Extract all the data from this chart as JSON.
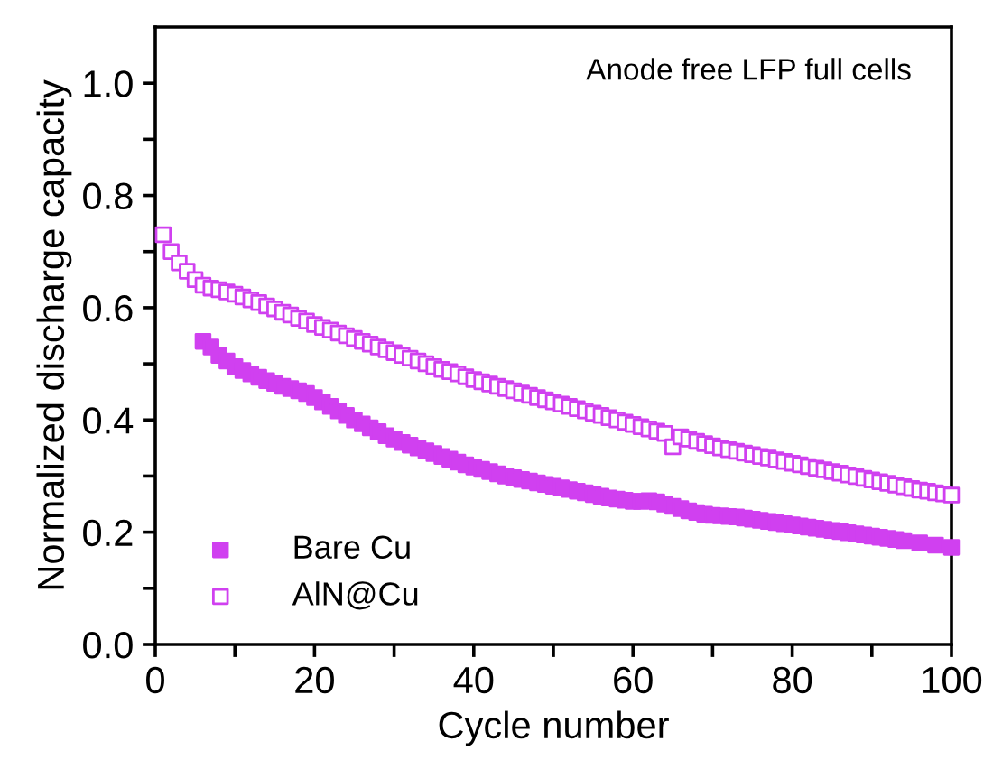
{
  "chart_data": {
    "type": "scatter",
    "xlabel": "Cycle number",
    "ylabel": "Normalized discharge capacity",
    "annotations": [
      "Anode free LFP full cells"
    ],
    "xlim": [
      0,
      100
    ],
    "xticks": [
      0,
      {
        "value": 10,
        "label": null
      },
      20,
      {
        "value": 30,
        "label": null
      },
      40,
      {
        "value": 50,
        "label": null
      },
      60,
      {
        "value": 70,
        "label": null
      },
      80,
      {
        "value": 90,
        "label": null
      },
      100
    ],
    "ylim": [
      0,
      1.1
    ],
    "yticks": [
      {
        "value": 0,
        "label": "0.0"
      },
      {
        "value": 0.1,
        "label": null
      },
      {
        "value": 0.2,
        "label": "0.2"
      },
      {
        "value": 0.3,
        "label": null
      },
      {
        "value": 0.4,
        "label": "0.4"
      },
      {
        "value": 0.5,
        "label": null
      },
      {
        "value": 0.6,
        "label": "0.6"
      },
      {
        "value": 0.7,
        "label": null
      },
      {
        "value": 0.8,
        "label": "0.8"
      },
      {
        "value": 0.9,
        "label": null
      },
      {
        "value": 1.0,
        "label": "1.0"
      }
    ],
    "grid": false,
    "legend": "bottom left",
    "marker": "square",
    "series": [
      {
        "name": "Bare Cu",
        "color": "#d040f0",
        "x": [
          6,
          7,
          8,
          9,
          10,
          11,
          12,
          13,
          14,
          15,
          16,
          17,
          18,
          19,
          20,
          21,
          22,
          23,
          24,
          25,
          26,
          27,
          28,
          29,
          30,
          31,
          32,
          33,
          34,
          35,
          36,
          37,
          38,
          39,
          40,
          41,
          42,
          43,
          44,
          45,
          46,
          47,
          48,
          49,
          50,
          51,
          52,
          53,
          54,
          55,
          56,
          57,
          58,
          59,
          60,
          61,
          62,
          63,
          64,
          65,
          66,
          67,
          68,
          69,
          70,
          71,
          72,
          73,
          74,
          75,
          76,
          77,
          78,
          79,
          80,
          81,
          82,
          83,
          84,
          85,
          86,
          87,
          88,
          89,
          90,
          91,
          92,
          93,
          94,
          96,
          98,
          100
        ],
        "values": [
          0.54,
          0.53,
          0.515,
          0.505,
          0.495,
          0.488,
          0.482,
          0.476,
          0.47,
          0.465,
          0.46,
          0.456,
          0.452,
          0.447,
          0.44,
          0.432,
          0.424,
          0.416,
          0.408,
          0.4,
          0.393,
          0.386,
          0.379,
          0.372,
          0.366,
          0.36,
          0.355,
          0.35,
          0.345,
          0.34,
          0.335,
          0.33,
          0.325,
          0.32,
          0.316,
          0.312,
          0.308,
          0.304,
          0.3,
          0.297,
          0.294,
          0.291,
          0.288,
          0.285,
          0.282,
          0.279,
          0.276,
          0.273,
          0.27,
          0.267,
          0.264,
          0.261,
          0.259,
          0.257,
          0.255,
          0.255,
          0.256,
          0.254,
          0.25,
          0.246,
          0.242,
          0.238,
          0.235,
          0.232,
          0.23,
          0.229,
          0.228,
          0.227,
          0.225,
          0.223,
          0.221,
          0.219,
          0.217,
          0.215,
          0.213,
          0.211,
          0.209,
          0.207,
          0.205,
          0.203,
          0.201,
          0.199,
          0.197,
          0.195,
          0.193,
          0.191,
          0.189,
          0.187,
          0.185,
          0.181,
          0.177,
          0.173
        ]
      },
      {
        "name": "AlN@Cu",
        "color": "#d040f0",
        "x": [
          1,
          2,
          3,
          4,
          5,
          6,
          7,
          8,
          9,
          10,
          11,
          12,
          13,
          14,
          15,
          16,
          17,
          18,
          19,
          20,
          21,
          22,
          23,
          24,
          25,
          26,
          27,
          28,
          29,
          30,
          31,
          32,
          33,
          34,
          35,
          36,
          37,
          38,
          39,
          40,
          41,
          42,
          43,
          44,
          45,
          46,
          47,
          48,
          49,
          50,
          51,
          52,
          53,
          54,
          55,
          56,
          57,
          58,
          59,
          60,
          61,
          62,
          63,
          64,
          65,
          66,
          67,
          68,
          69,
          70,
          71,
          72,
          73,
          74,
          75,
          76,
          77,
          78,
          79,
          80,
          81,
          82,
          83,
          84,
          85,
          86,
          87,
          88,
          89,
          90,
          91,
          92,
          93,
          94,
          95,
          96,
          97,
          98,
          99,
          100
        ],
        "values": [
          0.73,
          0.7,
          0.68,
          0.665,
          0.65,
          0.64,
          0.635,
          0.632,
          0.628,
          0.624,
          0.619,
          0.614,
          0.609,
          0.603,
          0.598,
          0.592,
          0.587,
          0.581,
          0.576,
          0.57,
          0.565,
          0.56,
          0.555,
          0.55,
          0.545,
          0.54,
          0.535,
          0.53,
          0.525,
          0.52,
          0.515,
          0.51,
          0.505,
          0.5,
          0.495,
          0.49,
          0.486,
          0.482,
          0.477,
          0.472,
          0.468,
          0.464,
          0.46,
          0.456,
          0.452,
          0.448,
          0.444,
          0.44,
          0.436,
          0.432,
          0.428,
          0.424,
          0.42,
          0.416,
          0.412,
          0.408,
          0.404,
          0.4,
          0.396,
          0.392,
          0.388,
          0.384,
          0.38,
          0.376,
          0.352,
          0.37,
          0.366,
          0.362,
          0.358,
          0.354,
          0.35,
          0.347,
          0.344,
          0.341,
          0.338,
          0.335,
          0.332,
          0.329,
          0.326,
          0.323,
          0.32,
          0.317,
          0.314,
          0.311,
          0.308,
          0.305,
          0.302,
          0.299,
          0.296,
          0.293,
          0.29,
          0.287,
          0.284,
          0.281,
          0.278,
          0.275,
          0.273,
          0.27,
          0.268,
          0.266
        ]
      }
    ]
  }
}
